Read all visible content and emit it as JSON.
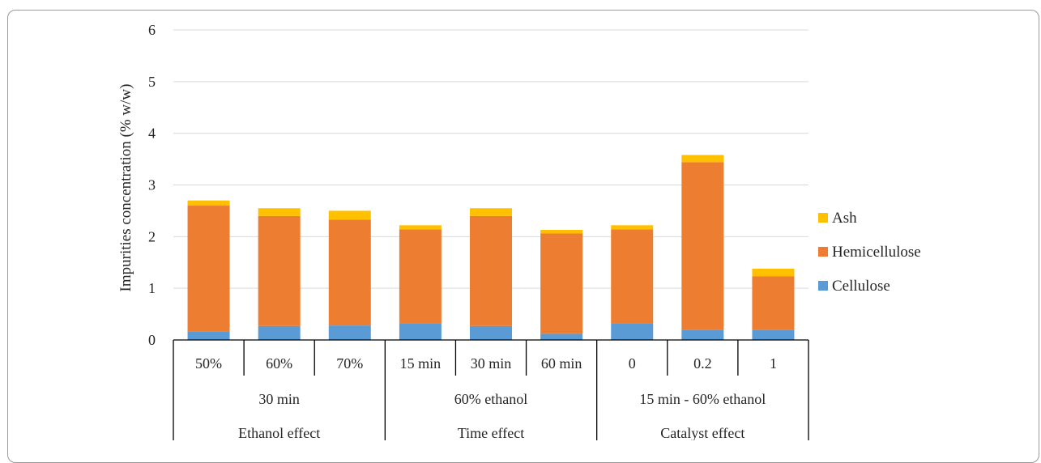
{
  "chart_data": {
    "type": "bar",
    "stacked": true,
    "ylabel": "Impurities concentration (% w/w)",
    "ylim": [
      0,
      6
    ],
    "yticks": [
      0,
      1,
      2,
      3,
      4,
      5,
      6
    ],
    "grid": true,
    "legend_position": "right",
    "categories": [
      "50%",
      "60%",
      "70%",
      "15 min",
      "30 min",
      "60 min",
      "0",
      "0.2",
      "1"
    ],
    "category_groups_level1": [
      {
        "label": "30 min",
        "span": 3
      },
      {
        "label": "60% ethanol",
        "span": 3
      },
      {
        "label": "15 min - 60% ethanol",
        "span": 3
      }
    ],
    "category_groups_level2": [
      {
        "label": "Ethanol effect",
        "span": 3
      },
      {
        "label": "Time effect",
        "span": 3
      },
      {
        "label": "Catalyst effect",
        "span": 3
      }
    ],
    "series": [
      {
        "name": "Cellulose",
        "color": "#5b9bd5",
        "values": [
          0.17,
          0.27,
          0.28,
          0.32,
          0.27,
          0.12,
          0.32,
          0.2,
          0.2
        ]
      },
      {
        "name": "Hemicellulose",
        "color": "#ed7d31",
        "values": [
          2.43,
          2.13,
          2.05,
          1.82,
          2.13,
          1.94,
          1.82,
          3.24,
          1.03
        ]
      },
      {
        "name": "Ash",
        "color": "#ffc000",
        "values": [
          0.1,
          0.15,
          0.17,
          0.08,
          0.15,
          0.07,
          0.08,
          0.14,
          0.15
        ]
      }
    ],
    "legend_order": [
      "Ash",
      "Hemicellulose",
      "Cellulose"
    ]
  }
}
